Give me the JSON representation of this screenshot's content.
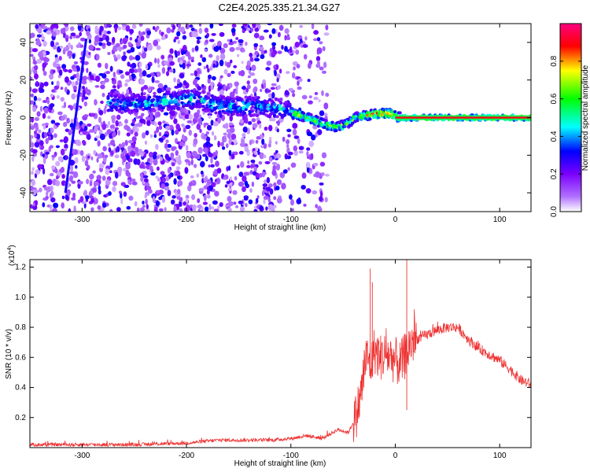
{
  "title": "C2E4.2025.335.21.34.G27",
  "colorbar": {
    "label": "Normalized spectral amplitude",
    "ticks": [
      "0.0",
      "0.2",
      "0.4",
      "0.6",
      "0.8"
    ],
    "tick_values": [
      0.0,
      0.2,
      0.4,
      0.6,
      0.8
    ],
    "range": [
      0,
      1
    ],
    "colormap": [
      "#ffffff",
      "#8a00ff",
      "#0000ff",
      "#00ffff",
      "#00ff00",
      "#ffff00",
      "#ff0000",
      "#ff0080"
    ]
  },
  "chart_data": [
    {
      "type": "heatmap",
      "xlabel": "Height of straight line (km)",
      "ylabel": "Frequency (Hz)",
      "xlim": [
        -350,
        130
      ],
      "ylim": [
        -50,
        50
      ],
      "xticks": [
        -300,
        -200,
        -100,
        0,
        100
      ],
      "xtick_labels": [
        "-300",
        "-200",
        "-100",
        "0",
        "100"
      ],
      "yticks": [
        -40,
        -20,
        0,
        20,
        40
      ],
      "ytick_labels": [
        "-40",
        "-20",
        "0",
        "20",
        "40"
      ],
      "ridge": {
        "x": [
          -270,
          -260,
          -190,
          -175,
          -160,
          -150,
          -130,
          -110,
          -95,
          -85,
          -75,
          -65,
          -55,
          -45,
          -38,
          -30,
          -20,
          -5,
          5,
          20,
          60,
          100,
          130
        ],
        "y": [
          8,
          7,
          10,
          7,
          6,
          6,
          6,
          5,
          2,
          0,
          -2,
          -4,
          -5,
          -3,
          0,
          1,
          2,
          2,
          0,
          0,
          0,
          0,
          0
        ]
      },
      "diagonal_streak": {
        "x": [
          -316,
          -296
        ],
        "y": [
          -40,
          42
        ]
      },
      "noise_extent_km": -75
    },
    {
      "type": "line",
      "xlabel": "Height of straight line (km)",
      "ylabel": "SNR (10 * v/v)",
      "yscale_label": "(x10",
      "yscale_exp": "4",
      "xlim": [
        -350,
        130
      ],
      "ylim": [
        0,
        1.25
      ],
      "xticks": [
        -300,
        -200,
        -100,
        0,
        100
      ],
      "xtick_labels": [
        "-300",
        "-200",
        "-100",
        "0",
        "100"
      ],
      "yticks": [
        0.2,
        0.4,
        0.6,
        0.8,
        1.0,
        1.2
      ],
      "ytick_labels": [
        "0.2",
        "0.4",
        "0.6",
        "0.8",
        "1.0",
        "1.2"
      ],
      "color": "#ee3333",
      "series": [
        {
          "x": [
            -350,
            -300,
            -250,
            -200,
            -170,
            -150,
            -120,
            -100,
            -85,
            -70,
            -55,
            -45,
            -38,
            -33,
            -28,
            -23,
            -20,
            -15,
            -8,
            0,
            5,
            10,
            15,
            20,
            30,
            40,
            50,
            60,
            70,
            80,
            90,
            100,
            110,
            120,
            130
          ],
          "values": [
            0.02,
            0.02,
            0.02,
            0.03,
            0.05,
            0.05,
            0.05,
            0.06,
            0.08,
            0.06,
            0.12,
            0.1,
            0.2,
            0.35,
            0.6,
            0.55,
            0.65,
            0.6,
            0.62,
            0.58,
            0.55,
            0.62,
            0.7,
            0.72,
            0.75,
            0.78,
            0.8,
            0.8,
            0.72,
            0.66,
            0.62,
            0.58,
            0.52,
            0.45,
            0.42
          ]
        }
      ],
      "spikes": [
        {
          "x": -24,
          "y": 1.19
        },
        {
          "x": -22,
          "y": 1.1
        },
        {
          "x": 11,
          "y": 1.25
        },
        {
          "x": 11,
          "y": 0.25
        }
      ]
    }
  ]
}
